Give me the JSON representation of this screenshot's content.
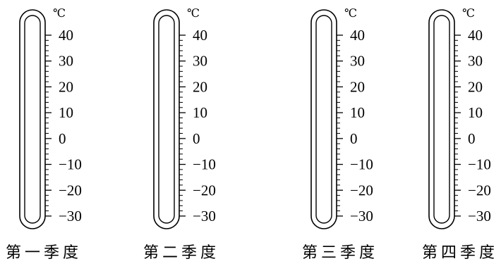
{
  "thermometers": [
    {
      "caption": "第一季度",
      "unit": "℃",
      "scale_labels": [
        "40",
        "30",
        "20",
        "10",
        "0",
        "−10",
        "−20",
        "−30"
      ]
    },
    {
      "caption": "第二季度",
      "unit": "℃",
      "scale_labels": [
        "40",
        "30",
        "20",
        "10",
        "0",
        "−10",
        "−20",
        "−30"
      ]
    },
    {
      "caption": "第三季度",
      "unit": "℃",
      "scale_labels": [
        "40",
        "30",
        "20",
        "10",
        "0",
        "−10",
        "−20",
        "−30"
      ]
    },
    {
      "caption": "第四季度",
      "unit": "℃",
      "scale_labels": [
        "40",
        "30",
        "20",
        "10",
        "0",
        "−10",
        "−20",
        "−30"
      ]
    }
  ]
}
